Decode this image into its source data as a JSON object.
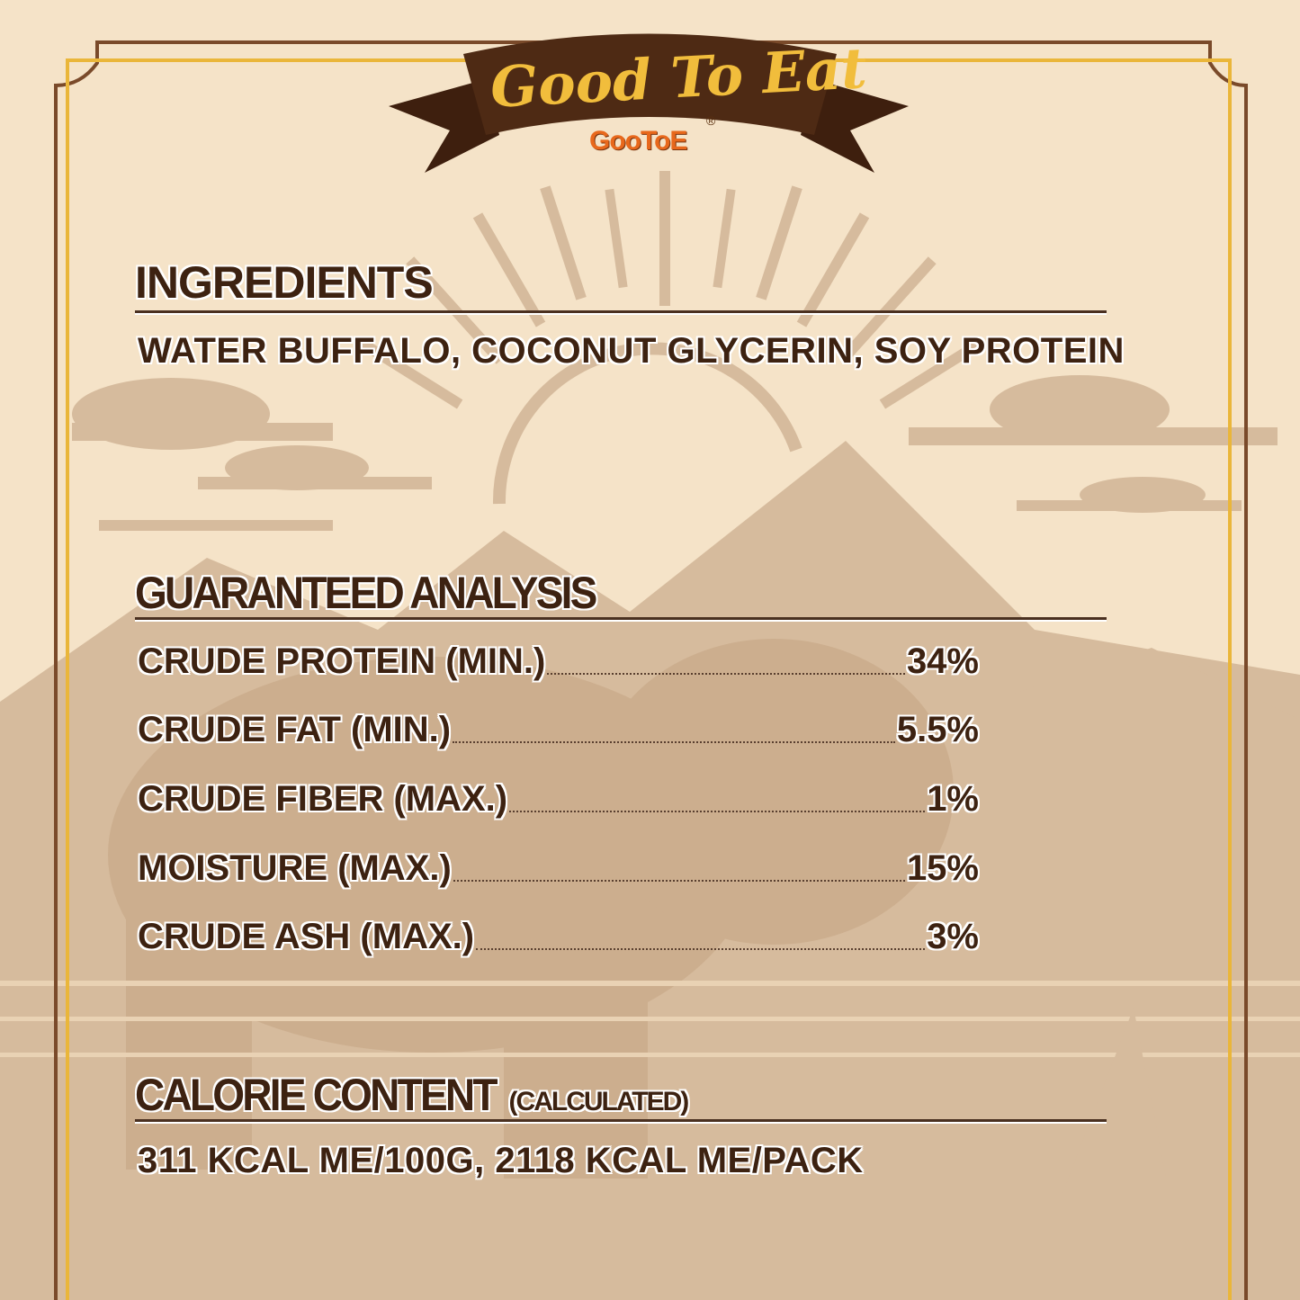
{
  "banner": {
    "title": "Good To Eat",
    "brand": "GooToE",
    "registered_mark": "®"
  },
  "colors": {
    "background": "#f5e3c8",
    "text": "#3d2211",
    "banner": "#4e2a14",
    "frame_brown": "#7a4a2a",
    "frame_gold": "#eab63a",
    "brand_orange": "#e8681c",
    "silhouette": "#d6bb9d"
  },
  "ingredients": {
    "heading": "INGREDIENTS",
    "text": "WATER BUFFALO, COCONUT GLYCERIN, SOY PROTEIN"
  },
  "analysis": {
    "heading": "GUARANTEED ANALYSIS",
    "rows": [
      {
        "label": "CRUDE PROTEIN (MIN.)",
        "value": "34%"
      },
      {
        "label": "CRUDE FAT (MIN.)",
        "value": "5.5%"
      },
      {
        "label": "CRUDE FIBER (MAX.)",
        "value": "1%"
      },
      {
        "label": "MOISTURE (MAX.)",
        "value": "15%"
      },
      {
        "label": "CRUDE ASH (MAX.)",
        "value": "3%"
      }
    ]
  },
  "calories": {
    "heading": "CALORIE CONTENT",
    "qualifier": "(CALCULATED)",
    "text": "311 KCAL ME/100G, 2118 KCAL ME/PACK"
  }
}
